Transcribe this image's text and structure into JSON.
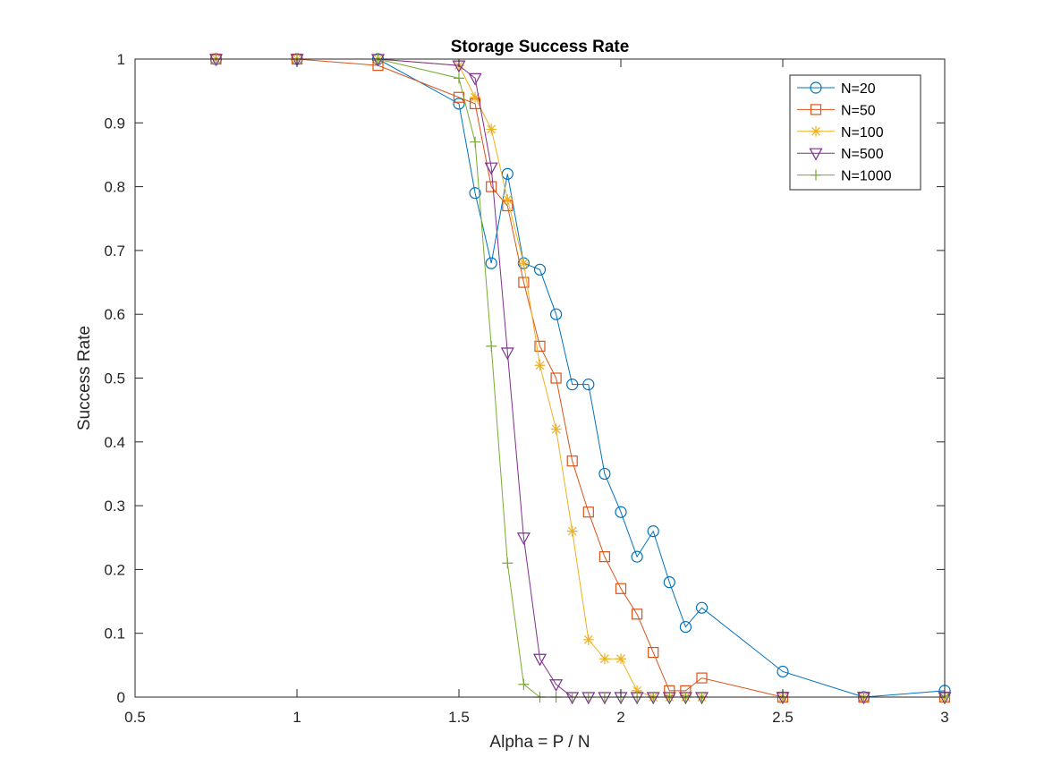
{
  "chart_data": {
    "type": "line",
    "title": "Storage Success Rate",
    "xlabel": "Alpha = P / N",
    "ylabel": "Success Rate",
    "xlim": [
      0.5,
      3
    ],
    "ylim": [
      0,
      1
    ],
    "xticks": [
      0.5,
      1,
      1.5,
      2,
      2.5,
      3
    ],
    "xtick_labels": [
      "0.5",
      "1",
      "1.5",
      "2",
      "2.5",
      "3"
    ],
    "yticks": [
      0,
      0.1,
      0.2,
      0.3,
      0.4,
      0.5,
      0.6,
      0.7,
      0.8,
      0.9,
      1
    ],
    "ytick_labels": [
      "0",
      "0.1",
      "0.2",
      "0.3",
      "0.4",
      "0.5",
      "0.6",
      "0.7",
      "0.8",
      "0.9",
      "1"
    ],
    "grid": false,
    "legend_position": "top-right",
    "series": [
      {
        "name": "N=20",
        "color": "#0072BD",
        "marker": "circle",
        "x": [
          0.75,
          1,
          1.25,
          1.5,
          1.55,
          1.6,
          1.65,
          1.7,
          1.75,
          1.8,
          1.85,
          1.9,
          1.95,
          2,
          2.05,
          2.1,
          2.15,
          2.2,
          2.25,
          2.5,
          2.75,
          3
        ],
        "y": [
          1,
          1,
          1,
          0.93,
          0.79,
          0.68,
          0.82,
          0.68,
          0.67,
          0.6,
          0.49,
          0.49,
          0.35,
          0.29,
          0.22,
          0.26,
          0.18,
          0.11,
          0.14,
          0.04,
          0,
          0.01
        ]
      },
      {
        "name": "N=50",
        "color": "#D95319",
        "marker": "square",
        "x": [
          0.75,
          1,
          1.25,
          1.5,
          1.55,
          1.6,
          1.65,
          1.7,
          1.75,
          1.8,
          1.85,
          1.9,
          1.95,
          2,
          2.05,
          2.1,
          2.15,
          2.2,
          2.25,
          2.5,
          2.75,
          3
        ],
        "y": [
          1,
          1,
          0.99,
          0.94,
          0.93,
          0.8,
          0.77,
          0.65,
          0.55,
          0.5,
          0.37,
          0.29,
          0.22,
          0.17,
          0.13,
          0.07,
          0.01,
          0.01,
          0.03,
          0,
          0,
          0
        ]
      },
      {
        "name": "N=100",
        "color": "#EDB120",
        "marker": "asterisk",
        "x": [
          0.75,
          1,
          1.25,
          1.5,
          1.55,
          1.6,
          1.65,
          1.7,
          1.75,
          1.8,
          1.85,
          1.9,
          1.95,
          2,
          2.05,
          2.1,
          2.15,
          2.2,
          2.25,
          2.5,
          2.75,
          3
        ],
        "y": [
          1,
          1,
          1,
          0.99,
          0.94,
          0.89,
          0.78,
          0.68,
          0.52,
          0.42,
          0.26,
          0.09,
          0.06,
          0.06,
          0.01,
          0,
          0,
          0,
          0,
          0,
          0,
          0
        ]
      },
      {
        "name": "N=500",
        "color": "#7E2F8E",
        "marker": "triangle-down",
        "x": [
          0.75,
          1,
          1.25,
          1.5,
          1.55,
          1.6,
          1.65,
          1.7,
          1.75,
          1.8,
          1.85,
          1.9,
          1.95,
          2,
          2.05,
          2.1,
          2.15,
          2.2,
          2.25,
          2.5,
          2.75,
          3
        ],
        "y": [
          1,
          1,
          1,
          0.99,
          0.97,
          0.83,
          0.54,
          0.25,
          0.06,
          0.02,
          0,
          0,
          0,
          0,
          0,
          0,
          0,
          0,
          0,
          0,
          0,
          0
        ]
      },
      {
        "name": "N=1000",
        "color": "#77AC30",
        "marker": "plus",
        "x": [
          0.75,
          1,
          1.25,
          1.5,
          1.55,
          1.6,
          1.65,
          1.7,
          1.75,
          1.8,
          1.85,
          1.9,
          1.95,
          2,
          2.05,
          2.1,
          2.15,
          2.2,
          2.25,
          2.5,
          2.75,
          3
        ],
        "y": [
          1,
          1,
          1,
          0.97,
          0.87,
          0.55,
          0.21,
          0.02,
          0,
          0,
          0,
          0,
          0,
          0,
          0,
          0,
          0,
          0,
          0,
          0,
          0,
          0
        ]
      }
    ]
  }
}
